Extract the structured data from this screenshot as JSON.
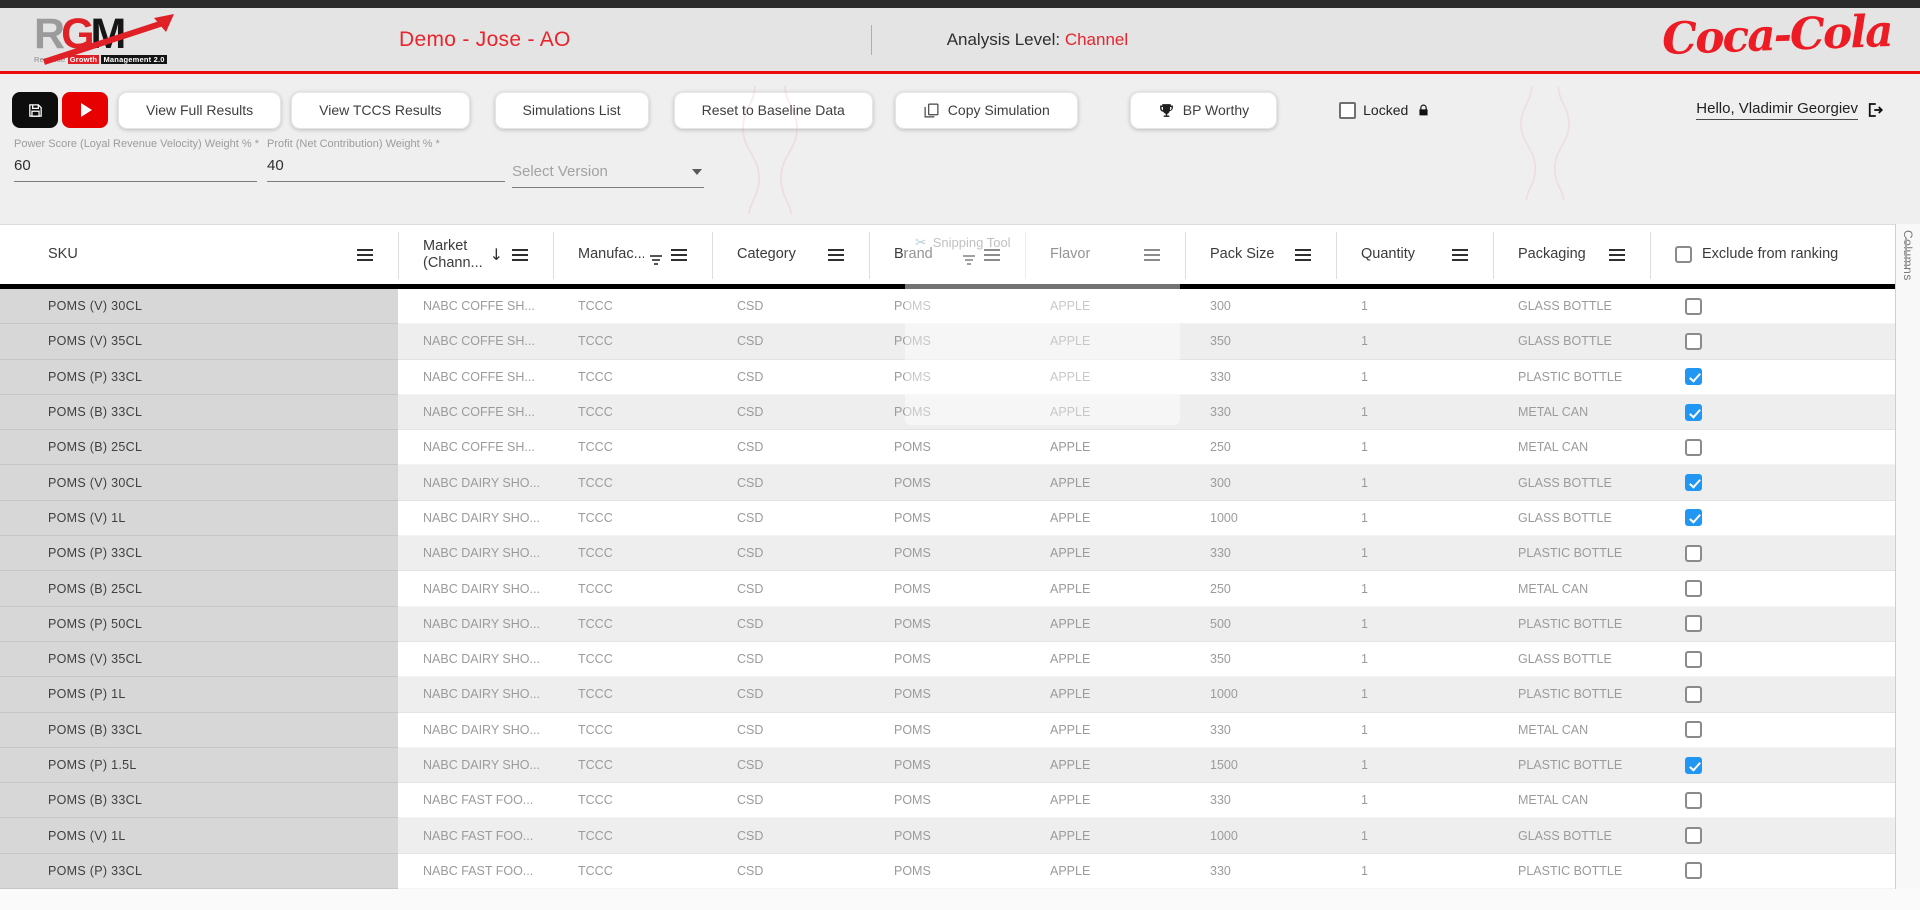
{
  "app": {
    "logo": {
      "letter_r": "R",
      "letter_g": "G",
      "letter_m": "M",
      "subtitle_revenue": "Revenue",
      "subtitle_growth": "Growth",
      "subtitle_management": "Management 2.0"
    },
    "title": "Demo - Jose - AO",
    "analysis_level_label": "Analysis Level:",
    "analysis_level_value": "Channel",
    "brand": "Coca-Cola",
    "greeting": "Hello, Vladimir Georgiev"
  },
  "toolbar": {
    "view_full_results": "View Full Results",
    "view_tccs_results": "View TCCS Results",
    "simulations_list": "Simulations List",
    "reset_to_baseline": "Reset to Baseline Data",
    "copy_simulation": "Copy Simulation",
    "bp_worthy": "BP Worthy",
    "locked_label": "Locked"
  },
  "weights": {
    "power_label": "Power Score (Loyal Revenue Velocity) Weight % *",
    "power_value": "60",
    "profit_label": "Profit (Net Contribution) Weight % *",
    "profit_value": "40",
    "version_placeholder": "Select Version"
  },
  "table": {
    "columns": [
      {
        "id": "sku",
        "label": "SKU",
        "menu": true
      },
      {
        "id": "market",
        "label": "Market",
        "label2": "(Chann...",
        "sort": true,
        "menu": true
      },
      {
        "id": "manufacturer",
        "label": "Manufac...",
        "filter": true,
        "menu": true
      },
      {
        "id": "category",
        "label": "Category",
        "menu": true
      },
      {
        "id": "brand",
        "label": "Brand",
        "filter": true,
        "menu": true
      },
      {
        "id": "flavor",
        "label": "Flavor",
        "menu": true
      },
      {
        "id": "pack_size",
        "label": "Pack Size",
        "menu": true
      },
      {
        "id": "quantity",
        "label": "Quantity",
        "menu": true
      },
      {
        "id": "packaging",
        "label": "Packaging",
        "menu": true
      },
      {
        "id": "exclude",
        "label": "Exclude from ranking",
        "checkbox": true
      }
    ],
    "columns_panel_label": "Columns",
    "rows": [
      {
        "sku": "POMS (V) 30CL",
        "market": "NABC COFFE SH...",
        "manufacturer": "TCCC",
        "category": "CSD",
        "brand": "POMS",
        "flavor": "APPLE",
        "pack_size": "300",
        "quantity": "1",
        "packaging": "GLASS BOTTLE",
        "excluded": false
      },
      {
        "sku": "POMS (V) 35CL",
        "market": "NABC COFFE SH...",
        "manufacturer": "TCCC",
        "category": "CSD",
        "brand": "POMS",
        "flavor": "APPLE",
        "pack_size": "350",
        "quantity": "1",
        "packaging": "GLASS BOTTLE",
        "excluded": false
      },
      {
        "sku": "POMS (P) 33CL",
        "market": "NABC COFFE SH...",
        "manufacturer": "TCCC",
        "category": "CSD",
        "brand": "POMS",
        "flavor": "APPLE",
        "pack_size": "330",
        "quantity": "1",
        "packaging": "PLASTIC BOTTLE",
        "excluded": true
      },
      {
        "sku": "POMS (B) 33CL",
        "market": "NABC COFFE SH...",
        "manufacturer": "TCCC",
        "category": "CSD",
        "brand": "POMS",
        "flavor": "APPLE",
        "pack_size": "330",
        "quantity": "1",
        "packaging": "METAL CAN",
        "excluded": true
      },
      {
        "sku": "POMS (B) 25CL",
        "market": "NABC COFFE SH...",
        "manufacturer": "TCCC",
        "category": "CSD",
        "brand": "POMS",
        "flavor": "APPLE",
        "pack_size": "250",
        "quantity": "1",
        "packaging": "METAL CAN",
        "excluded": false
      },
      {
        "sku": "POMS (V) 30CL",
        "market": "NABC DAIRY SHO...",
        "manufacturer": "TCCC",
        "category": "CSD",
        "brand": "POMS",
        "flavor": "APPLE",
        "pack_size": "300",
        "quantity": "1",
        "packaging": "GLASS BOTTLE",
        "excluded": true
      },
      {
        "sku": "POMS (V) 1L",
        "market": "NABC DAIRY SHO...",
        "manufacturer": "TCCC",
        "category": "CSD",
        "brand": "POMS",
        "flavor": "APPLE",
        "pack_size": "1000",
        "quantity": "1",
        "packaging": "GLASS BOTTLE",
        "excluded": true
      },
      {
        "sku": "POMS (P) 33CL",
        "market": "NABC DAIRY SHO...",
        "manufacturer": "TCCC",
        "category": "CSD",
        "brand": "POMS",
        "flavor": "APPLE",
        "pack_size": "330",
        "quantity": "1",
        "packaging": "PLASTIC BOTTLE",
        "excluded": false
      },
      {
        "sku": "POMS (B) 25CL",
        "market": "NABC DAIRY SHO...",
        "manufacturer": "TCCC",
        "category": "CSD",
        "brand": "POMS",
        "flavor": "APPLE",
        "pack_size": "250",
        "quantity": "1",
        "packaging": "METAL CAN",
        "excluded": false
      },
      {
        "sku": "POMS (P) 50CL",
        "market": "NABC DAIRY SHO...",
        "manufacturer": "TCCC",
        "category": "CSD",
        "brand": "POMS",
        "flavor": "APPLE",
        "pack_size": "500",
        "quantity": "1",
        "packaging": "PLASTIC BOTTLE",
        "excluded": false
      },
      {
        "sku": "POMS (V) 35CL",
        "market": "NABC DAIRY SHO...",
        "manufacturer": "TCCC",
        "category": "CSD",
        "brand": "POMS",
        "flavor": "APPLE",
        "pack_size": "350",
        "quantity": "1",
        "packaging": "GLASS BOTTLE",
        "excluded": false
      },
      {
        "sku": "POMS (P) 1L",
        "market": "NABC DAIRY SHO...",
        "manufacturer": "TCCC",
        "category": "CSD",
        "brand": "POMS",
        "flavor": "APPLE",
        "pack_size": "1000",
        "quantity": "1",
        "packaging": "PLASTIC BOTTLE",
        "excluded": false
      },
      {
        "sku": "POMS (B) 33CL",
        "market": "NABC DAIRY SHO...",
        "manufacturer": "TCCC",
        "category": "CSD",
        "brand": "POMS",
        "flavor": "APPLE",
        "pack_size": "330",
        "quantity": "1",
        "packaging": "METAL CAN",
        "excluded": false
      },
      {
        "sku": "POMS (P) 1.5L",
        "market": "NABC DAIRY SHO...",
        "manufacturer": "TCCC",
        "category": "CSD",
        "brand": "POMS",
        "flavor": "APPLE",
        "pack_size": "1500",
        "quantity": "1",
        "packaging": "PLASTIC BOTTLE",
        "excluded": true
      },
      {
        "sku": "POMS (B) 33CL",
        "market": "NABC FAST FOO...",
        "manufacturer": "TCCC",
        "category": "CSD",
        "brand": "POMS",
        "flavor": "APPLE",
        "pack_size": "330",
        "quantity": "1",
        "packaging": "METAL CAN",
        "excluded": false
      },
      {
        "sku": "POMS (V) 1L",
        "market": "NABC FAST FOO...",
        "manufacturer": "TCCC",
        "category": "CSD",
        "brand": "POMS",
        "flavor": "APPLE",
        "pack_size": "1000",
        "quantity": "1",
        "packaging": "GLASS BOTTLE",
        "excluded": false
      },
      {
        "sku": "POMS (P) 33CL",
        "market": "NABC FAST FOO...",
        "manufacturer": "TCCC",
        "category": "CSD",
        "brand": "POMS",
        "flavor": "APPLE",
        "pack_size": "330",
        "quantity": "1",
        "packaging": "PLASTIC BOTTLE",
        "excluded": false
      }
    ]
  },
  "ghost": {
    "snipping_tool": "Snipping Tool"
  },
  "colors": {
    "accent_red": "#E6252D",
    "coke_red": "#ED1C24",
    "check_blue": "#2196F3"
  }
}
